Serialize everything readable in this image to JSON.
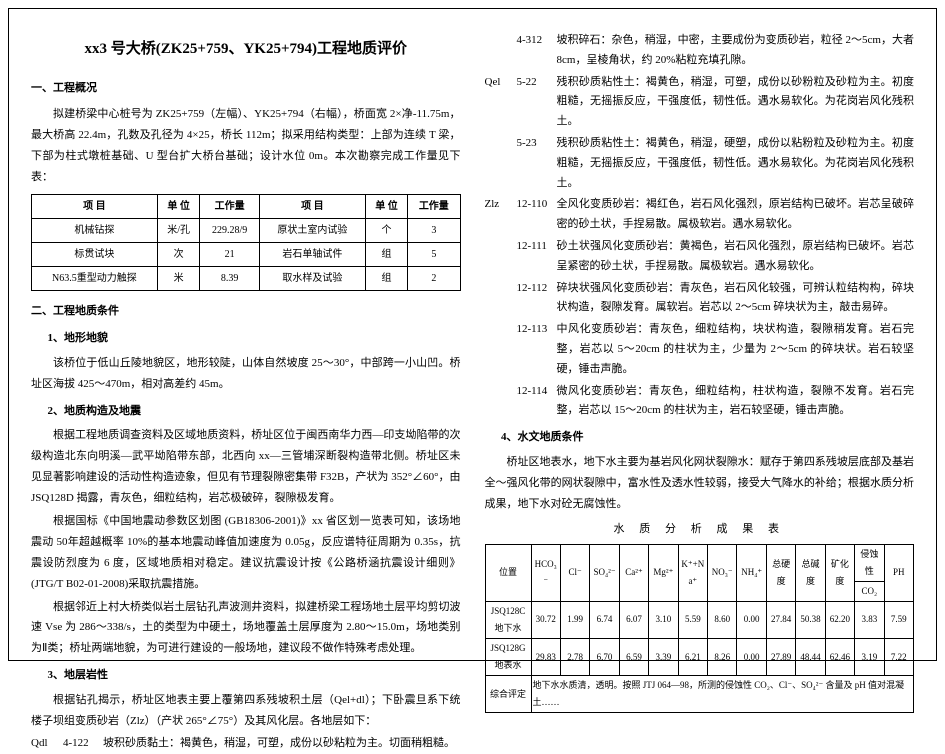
{
  "title": "xx3 号大桥(ZK25+759、YK25+794)工程地质评价",
  "headings": {
    "h_overview": "一、工程概况",
    "h_geocond": "二、工程地质条件",
    "h_topo": "1、地形地貌",
    "h_struct": "2、地质构造及地震",
    "h_soil": "3、地层岩性",
    "h_hydro": "4、水文地质条件"
  },
  "p_overview1": "拟建桥梁中心桩号为 ZK25+759（左幅）、YK25+794（右幅），桥面宽 2×净-11.75m，最大桥高 22.4m，孔数及孔径为 4×25，桥长 112m；拟采用结构类型：上部为连续 T 梁，下部为柱式墩桩基础、U 型台扩大桥台基础；设计水位 0m。本次勘察完成工作量见下表：",
  "workload": {
    "head": [
      "项 目",
      "单 位",
      "工作量",
      "项 目",
      "单 位",
      "工作量"
    ],
    "rows": [
      [
        "机械钻探",
        "米/孔",
        "229.28/9",
        "原状土室内试验",
        "个",
        "3"
      ],
      [
        "标贯试块",
        "次",
        "21",
        "岩石单轴试件",
        "组",
        "5"
      ],
      [
        "N63.5重型动力触探",
        "米",
        "8.39",
        "取水样及试验",
        "组",
        "2"
      ]
    ]
  },
  "p_topo": "该桥位于低山丘陵地貌区，地形较陡，山体自然坡度 25～30°，中部跨一小山凹。桥址区海拔 425～470m，相对高差约 45m。",
  "p_struct1": "根据工程地质调查资料及区域地质资料，桥址区位于闽西南华力西—印支坳陷带的次级构造北东向明溪—武平坳陷带东部，北西向 xx—三管埔深断裂构造带北侧。桥址区未见显著影响建设的活动性构造迹象，但见有节理裂隙密集带 F32B，产状为 352°∠60°，由 JSQ128D 揭露，青灰色，细粒结构，岩芯极破碎，裂隙极发育。",
  "p_struct2": "根据国标《中国地震动参数区划图 (GB18306-2001)》xx 省区划一览表可知，该场地震动 50年超越概率 10%的基本地震动峰值加速度为 0.05g，反应谱特征周期为 0.35s，抗震设防烈度为 6 度，区域地质相对稳定。建议抗震设计按《公路桥涵抗震设计细则》(JTG/T B02-01-2008)采取抗震措施。",
  "p_struct3": "根据邻近上村大桥类似岩土层钻孔声波测井资料，拟建桥梁工程场地土层平均剪切波速 Vse 为 286～338/s，土的类型为中硬土，场地覆盖土层厚度为 2.80～15.0m，场地类别为Ⅱ类；桥址两端地貌，为可进行建设的一般场地，建议段不做作特殊考虑处理。",
  "p_soil1": "根据钻孔揭示，桥址区地表主要上覆第四系残坡积土层（Qel+dl）；下卧震旦系下统楼子坝组变质砂岩（Zlz）（产状 265°∠75°）及其风化层。各地层如下：",
  "strata": [
    {
      "sym": "Qdl",
      "num": "4-122",
      "txt": "坡积砂质黏土：褐黄色，稍湿，可塑，成份以砂粘粒为主。切面稍粗糙。"
    },
    {
      "sym": "",
      "num": "4-312",
      "txt": "坡积碎石：杂色，稍湿，中密，主要成份为变质砂岩，粒径 2～5cm，大者8cm，呈棱角状，约 20%粘粒充填孔隙。"
    },
    {
      "sym": "Qel",
      "num": "5-22",
      "txt": "残积砂质粘性土：褐黄色，稍湿，可塑，成份以砂粉粒及砂粒为主。初度粗糙，无摇振反应，干强度低，韧性低。遇水易软化。为花岗岩风化残积土。"
    },
    {
      "sym": "",
      "num": "5-23",
      "txt": "残积砂质粘性土：褐黄色，稍湿，硬塑，成份以粘粉粒及砂粒为主。初度粗糙，无摇振反应，干强度低，韧性低。遇水易软化。为花岗岩风化残积土。"
    },
    {
      "sym": "Zlz",
      "num": "12-110",
      "txt": "全风化变质砂岩：褐红色，岩石风化强烈，原岩结构已破坏。岩芯呈破碎密的砂土状，手捏易散。属极软岩。遇水易软化。"
    },
    {
      "sym": "",
      "num": "12-111",
      "txt": "砂土状强风化变质砂岩：黄褐色，岩石风化强烈，原岩结构已破坏。岩芯呈紧密的砂土状，手捏易散。属极软岩。遇水易软化。"
    },
    {
      "sym": "",
      "num": "12-112",
      "txt": "碎块状强风化变质砂岩：青灰色，岩石风化较强，可辨认粒结构构，碎块状构造，裂隙发育。属软岩。岩芯以 2～5cm 碎块状为主，敲击易碎。"
    },
    {
      "sym": "",
      "num": "12-113",
      "txt": "中风化变质砂岩：青灰色，细粒结构，块状构造，裂隙稍发育。岩石完整，岩芯以 5～20cm 的柱状为主，少量为 2～5cm 的碎块状。岩石较坚硬，锤击声脆。"
    },
    {
      "sym": "",
      "num": "12-114",
      "txt": "微风化变质砂岩：青灰色，细粒结构，柱状构造，裂隙不发育。岩石完整，岩芯以 15～20cm 的柱状为主，岩石较坚硬，锤击声脆。"
    }
  ],
  "p_hydro1": "桥址区地表水，地下水主要为基岩风化网状裂隙水：赋存于第四系残坡层底部及基岩全～强风化带的网状裂隙中，富水性及透水性较弱，接受大气降水的补给；根据水质分析成果，地下水对砼无腐蚀性。",
  "water_title": "水 质 分 析 成 果 表",
  "water": {
    "head1": [
      "位置",
      "HCO₃⁻",
      "Cl⁻",
      "SO₄²⁻",
      "Ca²⁺",
      "Mg²⁺",
      "K⁺+Na⁺",
      "NO₃⁻",
      "NH₄⁺",
      "总硬度",
      "总碱度",
      "矿化度",
      "侵蚀性",
      "PH"
    ],
    "head2": [
      "",
      "",
      "",
      "",
      "",
      "",
      "",
      "",
      "",
      "",
      "",
      "",
      "CO₂",
      ""
    ],
    "rows": [
      [
        "JSQ128C地下水",
        "30.72",
        "1.99",
        "6.74",
        "6.07",
        "3.10",
        "5.59",
        "8.60",
        "0.00",
        "27.84",
        "50.38",
        "62.20",
        "3.83",
        "7.59"
      ],
      [
        "JSQ128G地表水",
        "29.83",
        "2.78",
        "6.70",
        "6.59",
        "3.39",
        "6.21",
        "8.26",
        "0.00",
        "27.89",
        "48.44",
        "62.46",
        "3.19",
        "7.22"
      ]
    ],
    "summary_label": "综合评定",
    "summary_text": "地下水水质清，透明。按照 JTJ 064—98，所测的侵蚀性 CO₂、Cl⁻、SO₄²⁻ 含量及 pH 值对混凝土……"
  }
}
